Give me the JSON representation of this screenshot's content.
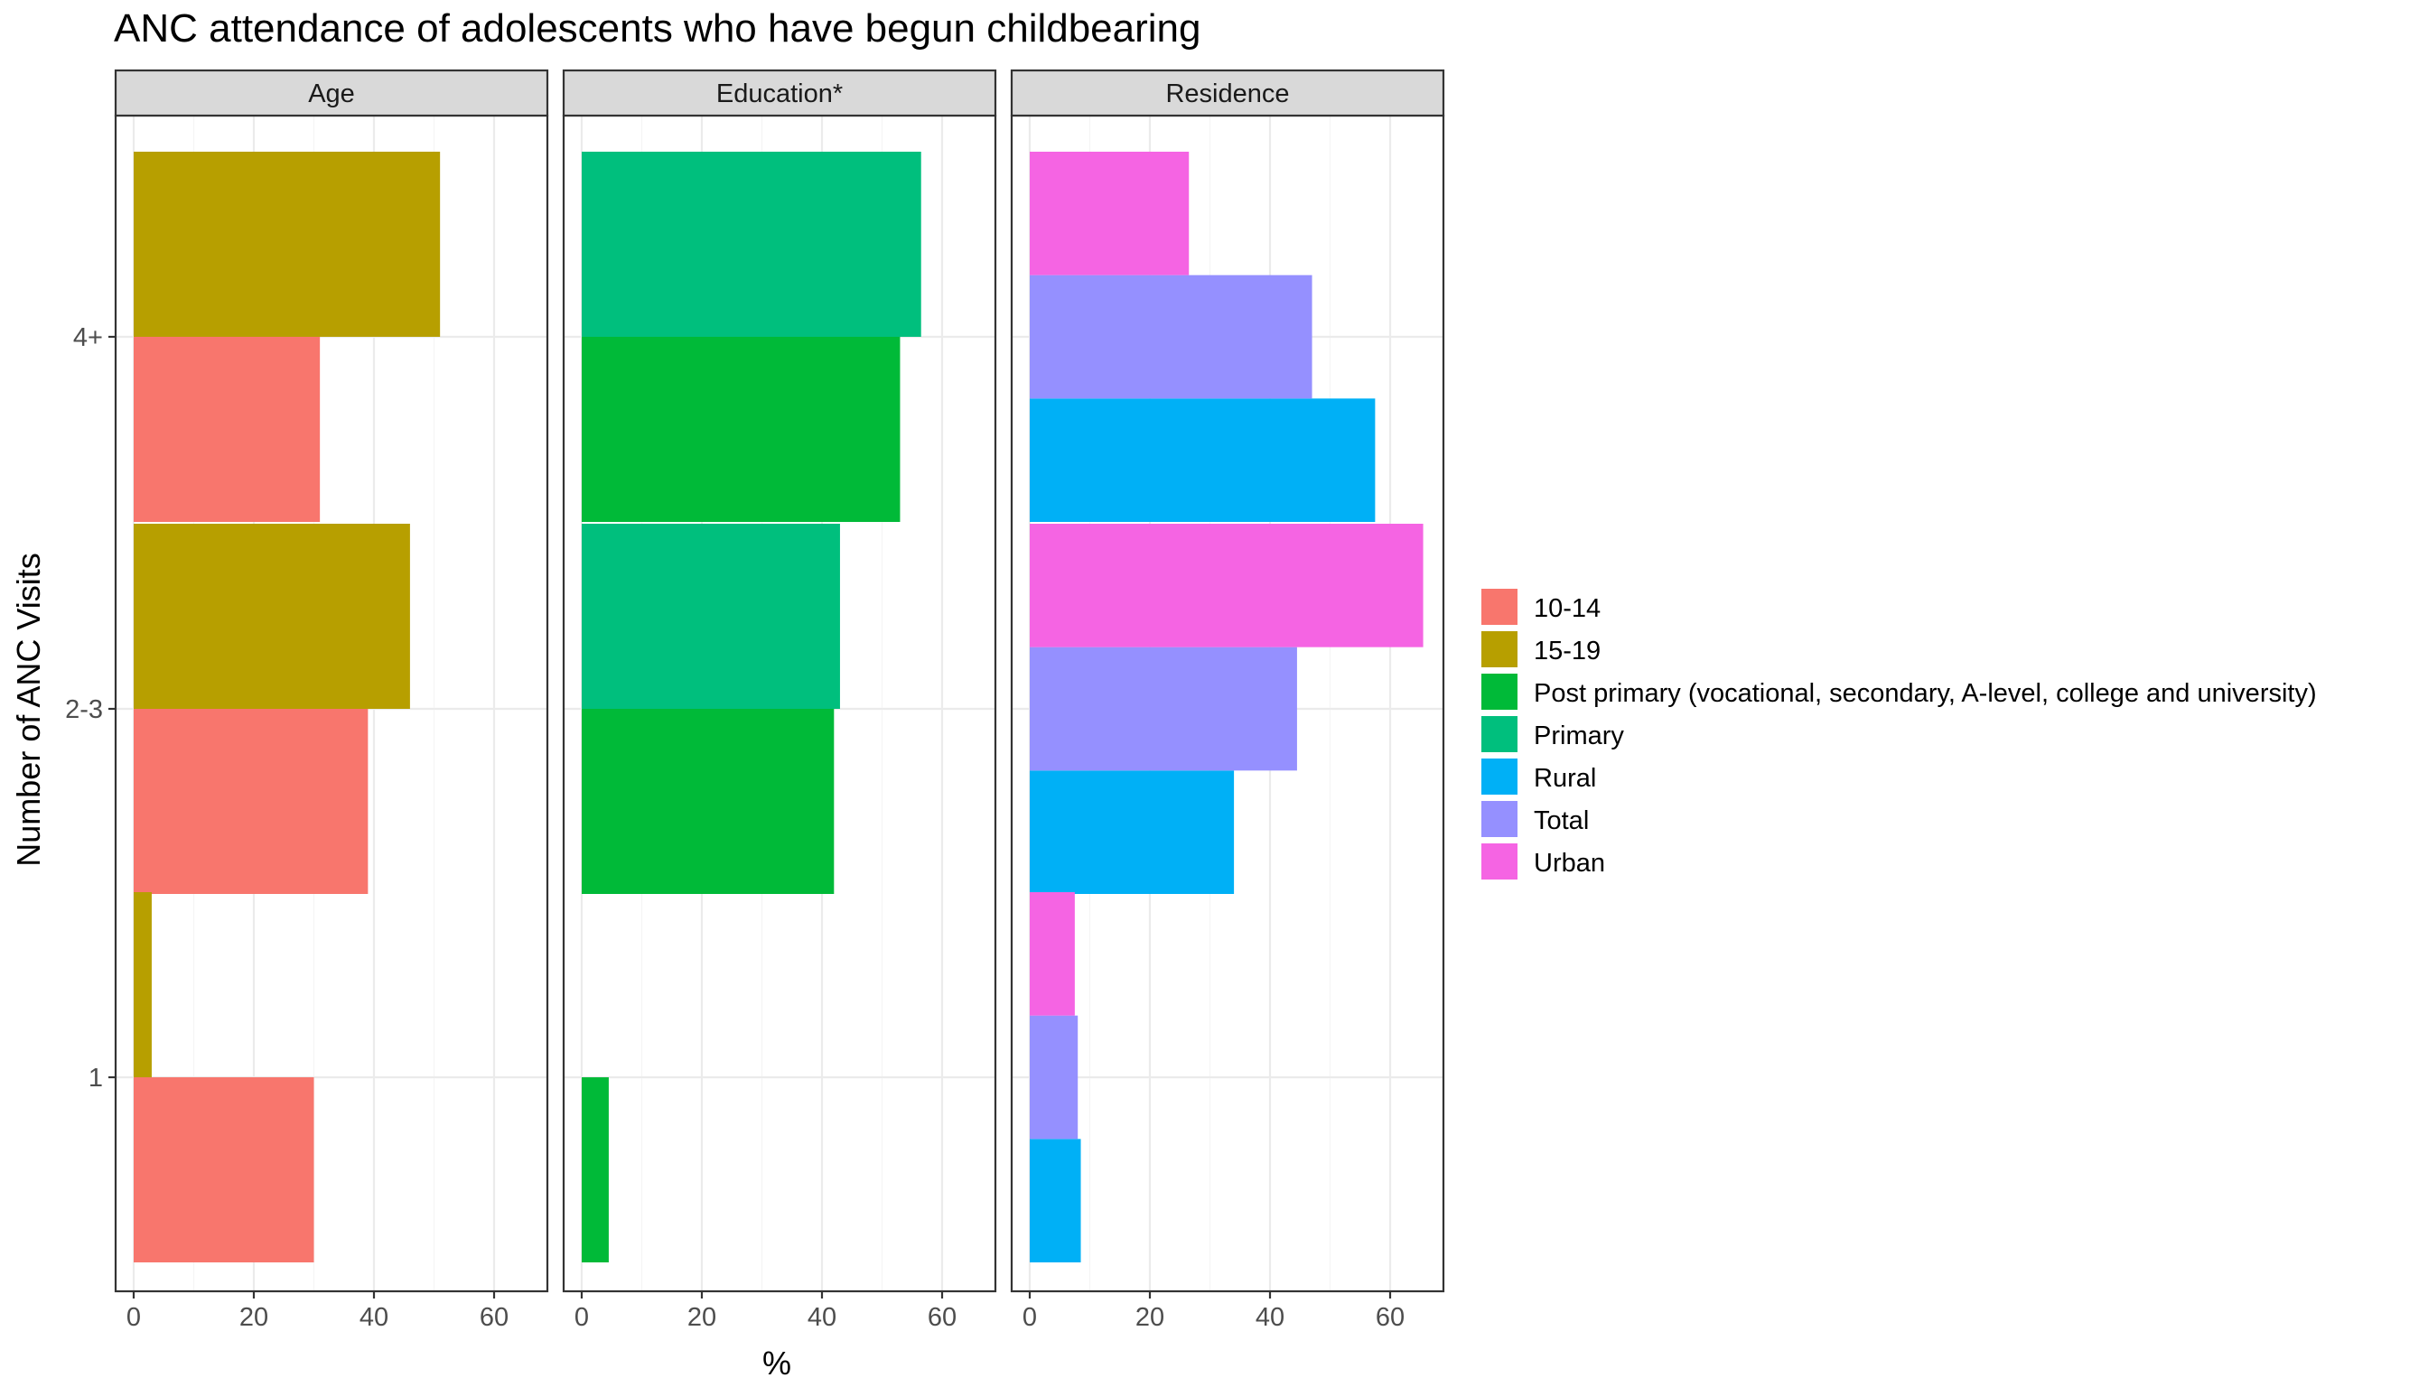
{
  "chart_data": {
    "type": "bar",
    "orientation": "horizontal",
    "title": "ANC attendance of adolescents who have begun childbearing",
    "xlabel": "%",
    "ylabel": "Number of ANC Visits",
    "categories": [
      "1",
      "2-3",
      "4+"
    ],
    "xlim": [
      0,
      68
    ],
    "xticks": [
      "0",
      "20",
      "40",
      "60"
    ],
    "grid": true,
    "legend_position": "right",
    "colors": {
      "10-14": "#F8766D",
      "15-19": "#B79F00",
      "Post primary (vocational, secondary, A-level, college and university)": "#00BA38",
      "Primary": "#00BF7D",
      "Rural": "#00B0F6",
      "Total": "#9590FF",
      "Urban": "#F564E3"
    },
    "legend": [
      "10-14",
      "15-19",
      "Post primary (vocational, secondary, A-level, college and university)",
      "Primary",
      "Rural",
      "Total",
      "Urban"
    ],
    "panels": [
      {
        "strip": "Age",
        "series": [
          {
            "name": "10-14",
            "values": [
              30,
              39,
              31
            ]
          },
          {
            "name": "15-19",
            "values": [
              3,
              46,
              51
            ]
          }
        ]
      },
      {
        "strip": "Education*",
        "series": [
          {
            "name": "Post primary (vocational, secondary, A-level, college and university)",
            "values": [
              4.5,
              42,
              53
            ]
          },
          {
            "name": "Primary",
            "values": [
              0,
              43,
              56.5
            ]
          }
        ]
      },
      {
        "strip": "Residence",
        "series": [
          {
            "name": "Rural",
            "values": [
              8.5,
              34,
              57.5
            ]
          },
          {
            "name": "Total",
            "values": [
              8,
              44.5,
              47
            ]
          },
          {
            "name": "Urban",
            "values": [
              7.5,
              65.5,
              26.5
            ]
          }
        ]
      }
    ]
  }
}
